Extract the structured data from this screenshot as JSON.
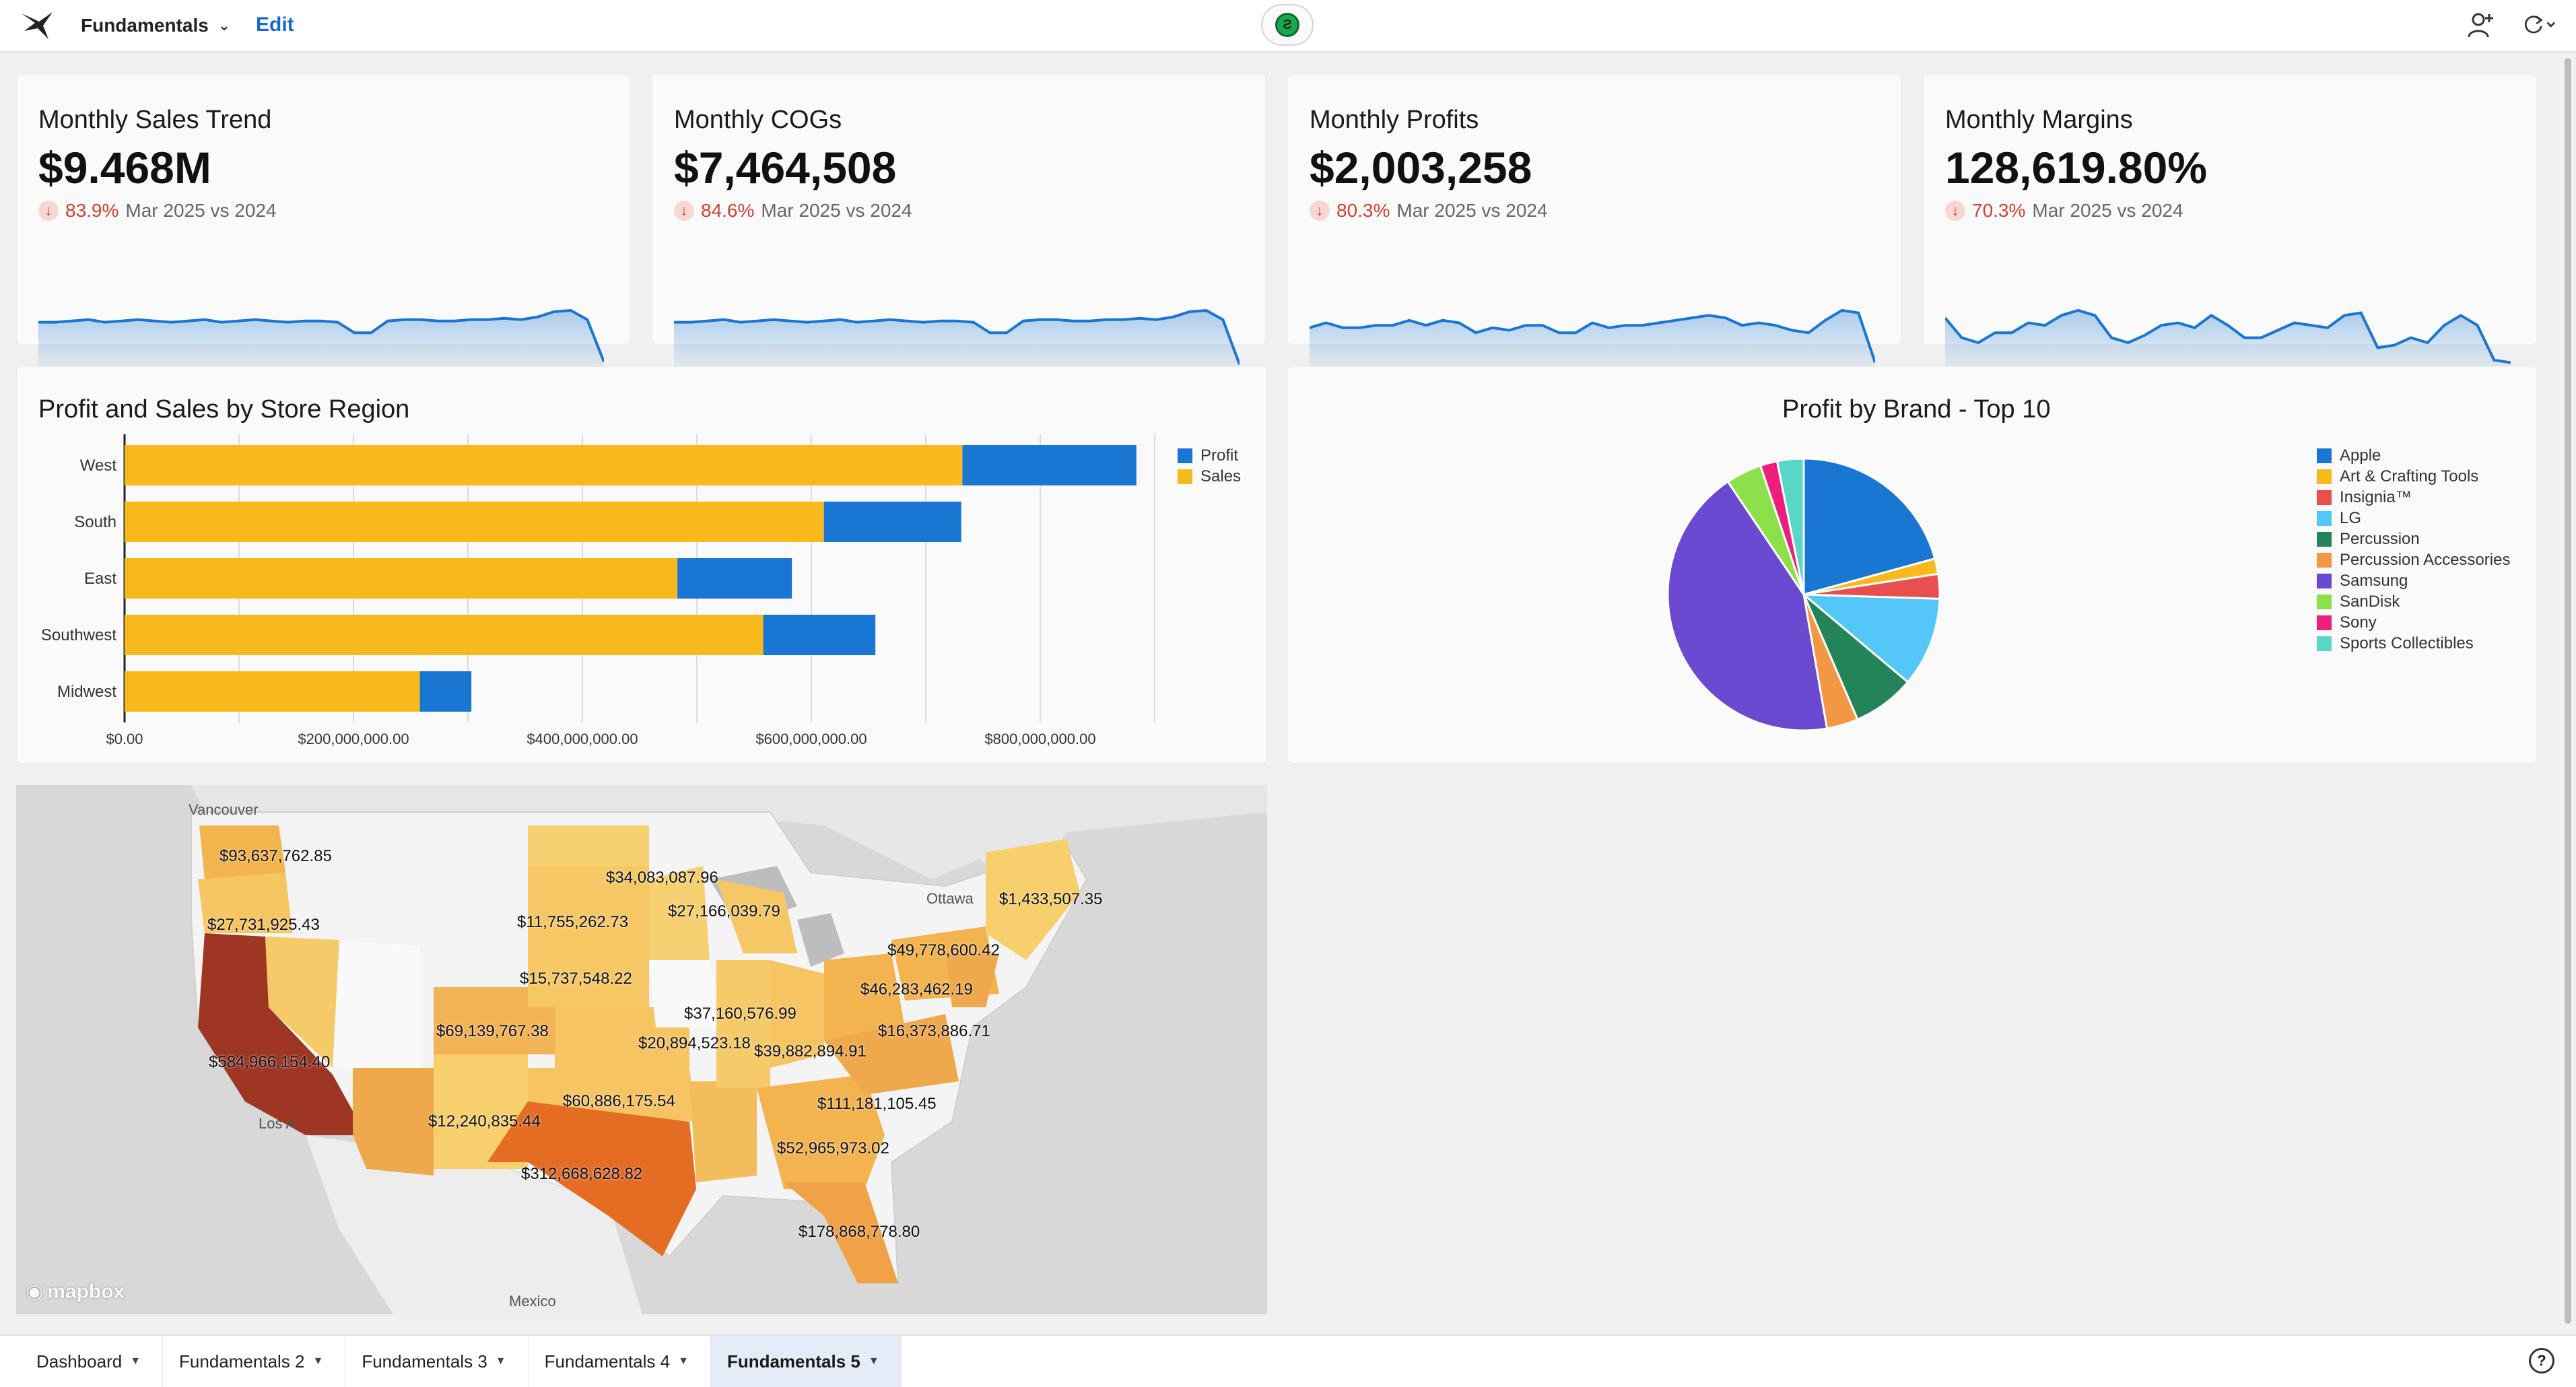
{
  "header": {
    "workbook_title": "Fundamentals",
    "edit_label": "Edit"
  },
  "kpis": [
    {
      "title": "Monthly Sales Trend",
      "value": "$9.468M",
      "delta_pct": "83.9%",
      "delta_label": "Mar 2025 vs 2024",
      "spark": [
        40,
        40,
        41,
        42,
        40,
        41,
        42,
        41,
        40,
        41,
        42,
        40,
        41,
        42,
        41,
        40,
        41,
        41,
        40,
        32,
        32,
        41,
        42,
        42,
        41,
        41,
        42,
        42,
        43,
        42,
        44,
        48,
        49,
        42,
        10
      ]
    },
    {
      "title": "Monthly COGs",
      "value": "$7,464,508",
      "delta_pct": "84.6%",
      "delta_label": "Mar 2025 vs 2024",
      "spark": [
        40,
        40,
        41,
        42,
        40,
        41,
        42,
        41,
        40,
        41,
        42,
        40,
        41,
        42,
        41,
        40,
        41,
        41,
        40,
        32,
        32,
        41,
        42,
        42,
        41,
        41,
        42,
        42,
        43,
        42,
        44,
        48,
        49,
        42,
        8
      ]
    },
    {
      "title": "Monthly Profits",
      "value": "$2,003,258",
      "delta_pct": "80.3%",
      "delta_label": "Mar 2025 vs 2024",
      "spark": [
        38,
        42,
        38,
        38,
        40,
        40,
        44,
        40,
        44,
        42,
        34,
        38,
        36,
        40,
        40,
        34,
        34,
        42,
        38,
        40,
        40,
        42,
        44,
        46,
        48,
        46,
        40,
        42,
        40,
        36,
        34,
        44,
        52,
        50,
        10
      ]
    },
    {
      "title": "Monthly Margins",
      "value": "128,619.80%",
      "delta_pct": "70.3%",
      "delta_label": "Mar 2025 vs 2024",
      "spark": [
        46,
        30,
        26,
        34,
        34,
        42,
        40,
        48,
        52,
        48,
        30,
        26,
        32,
        40,
        42,
        38,
        48,
        40,
        30,
        30,
        36,
        42,
        40,
        38,
        48,
        50,
        22,
        24,
        30,
        26,
        40,
        48,
        40,
        12,
        10
      ]
    }
  ],
  "bar_chart": {
    "title": "Profit and Sales by Store Region",
    "legend_profit": "Profit",
    "legend_sales": "Sales",
    "colors": {
      "profit": "#1976d2",
      "sales": "#f7b91b"
    },
    "x_ticks": [
      "$0.00",
      "$200,000,000.00",
      "$400,000,000.00",
      "$600,000,000.00",
      "$800,000,000.00"
    ]
  },
  "pie_chart": {
    "title": "Profit by Brand - Top 10"
  },
  "chart_data": [
    {
      "type": "bar",
      "orientation": "horizontal",
      "stacked": true,
      "title": "Profit and Sales by Store Region",
      "categories": [
        "West",
        "South",
        "East",
        "Southwest",
        "Midwest"
      ],
      "series": [
        {
          "name": "Sales",
          "values": [
            732000000,
            611000000,
            483000000,
            558000000,
            258000000
          ]
        },
        {
          "name": "Profit",
          "values": [
            152000000,
            120000000,
            100000000,
            98000000,
            45000000
          ]
        }
      ],
      "xlim": [
        0,
        900000000
      ],
      "legend": "right",
      "grid": true
    },
    {
      "type": "pie",
      "title": "Profit by Brand - Top 10",
      "labels": [
        "Apple",
        "Art & Crafting Tools",
        "Insignia™",
        "LG",
        "Percussion",
        "Percussion Accessories",
        "Samsung",
        "SanDisk",
        "Sony",
        "Sports Collectibles"
      ],
      "values": [
        20.5,
        1.8,
        2.9,
        10.5,
        7.3,
        3.7,
        42.8,
        4.2,
        2.0,
        3.1
      ],
      "colors": [
        "#1976d2",
        "#f7b91b",
        "#ea4f4f",
        "#55c6f8",
        "#23845a",
        "#f39745",
        "#6b4ad1",
        "#8ee04b",
        "#ec1f7f",
        "#59d6c8"
      ],
      "legend": "right"
    }
  ],
  "map": {
    "labels": [
      {
        "text": "$93,637,762.85"
      },
      {
        "text": "$27,731,925.43"
      },
      {
        "text": "$584,966,154.40"
      },
      {
        "text": "$34,083,087.96"
      },
      {
        "text": "$27,166,039.79"
      },
      {
        "text": "$11,755,262.73"
      },
      {
        "text": "$15,737,548.22"
      },
      {
        "text": "$69,139,767.38"
      },
      {
        "text": "$37,160,576.99"
      },
      {
        "text": "$20,894,523.18"
      },
      {
        "text": "$39,882,894.91"
      },
      {
        "text": "$1,433,507.35"
      },
      {
        "text": "$49,778,600.42"
      },
      {
        "text": "$46,283,462.19"
      },
      {
        "text": "$16,373,886.71"
      },
      {
        "text": "$60,886,175.54"
      },
      {
        "text": "$12,240,835.44"
      },
      {
        "text": "$111,181,105.45"
      },
      {
        "text": "$52,965,973.02"
      },
      {
        "text": "$312,668,628.82"
      },
      {
        "text": "$178,868,778.80"
      }
    ],
    "cities": {
      "vancouver": "Vancouver",
      "ottawa": "Ottawa",
      "mexico": "Mexico",
      "los_angeles": "Los A"
    },
    "attribution": "mapbox"
  },
  "tabs": [
    {
      "label": "Dashboard"
    },
    {
      "label": "Fundamentals 2"
    },
    {
      "label": "Fundamentals 3"
    },
    {
      "label": "Fundamentals 4"
    },
    {
      "label": "Fundamentals 5"
    }
  ],
  "help_label": "?"
}
